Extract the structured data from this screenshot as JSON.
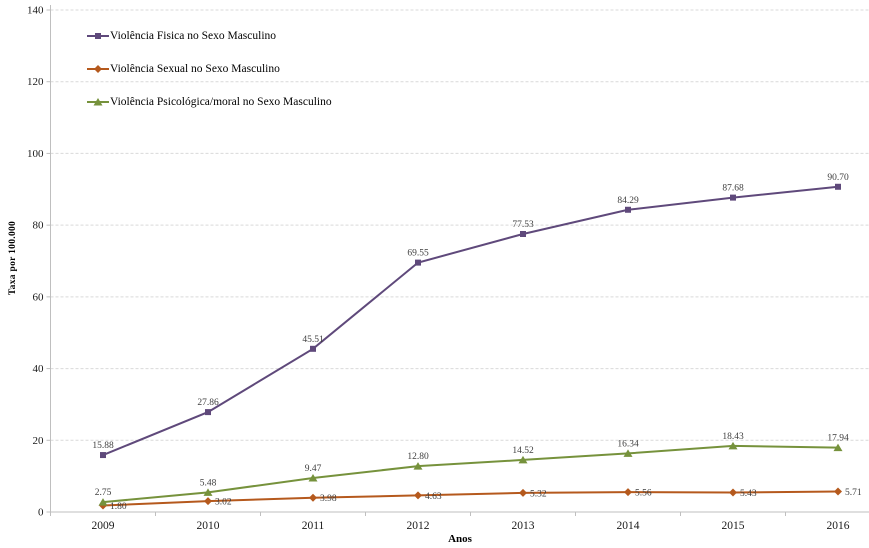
{
  "chart_data": {
    "type": "line",
    "title": "",
    "xlabel": "Anos",
    "ylabel": "Taxa por 100.000",
    "categories": [
      "2009",
      "2010",
      "2011",
      "2012",
      "2013",
      "2014",
      "2015",
      "2016"
    ],
    "ylim": [
      0,
      140
    ],
    "y_ticks": [
      0,
      20,
      40,
      60,
      80,
      100,
      120,
      140
    ],
    "grid": "horizontal-dashed",
    "legend_position": "inside-top-left",
    "series": [
      {
        "name": "Violência Fisica no Sexo Masculino",
        "color": "#5f497b",
        "marker": "square",
        "label_position": "above",
        "values": [
          15.88,
          27.86,
          45.51,
          69.55,
          77.53,
          84.29,
          87.68,
          90.7
        ],
        "value_labels": [
          "15.88",
          "27.86",
          "45.51",
          "69.55",
          "77.53",
          "84.29",
          "87.68",
          "90.70"
        ]
      },
      {
        "name": "Violência Sexual no Sexo Masculino",
        "color": "#b5591d",
        "marker": "diamond",
        "label_position": "right",
        "values": [
          1.8,
          3.02,
          3.98,
          4.63,
          5.32,
          5.56,
          5.43,
          5.71
        ],
        "value_labels": [
          "1.80",
          "3.02",
          "3.98",
          "4.63",
          "5.32",
          "5.56",
          "5.43",
          "5.71"
        ]
      },
      {
        "name": "Violência Psicológica/moral no Sexo Masculino",
        "color": "#76923c",
        "marker": "triangle",
        "label_position": "above",
        "values": [
          2.75,
          5.48,
          9.47,
          12.8,
          14.52,
          16.34,
          18.43,
          17.94
        ],
        "value_labels": [
          "2.75",
          "5.48",
          "9.47",
          "12.80",
          "14.52",
          "16.34",
          "18.43",
          "17.94"
        ]
      }
    ],
    "colors": {
      "grid": "#d9d9d9",
      "axis": "#bfbfbf",
      "tick_text": "#1a1a1a",
      "label_text": "#3f3f3f"
    }
  }
}
